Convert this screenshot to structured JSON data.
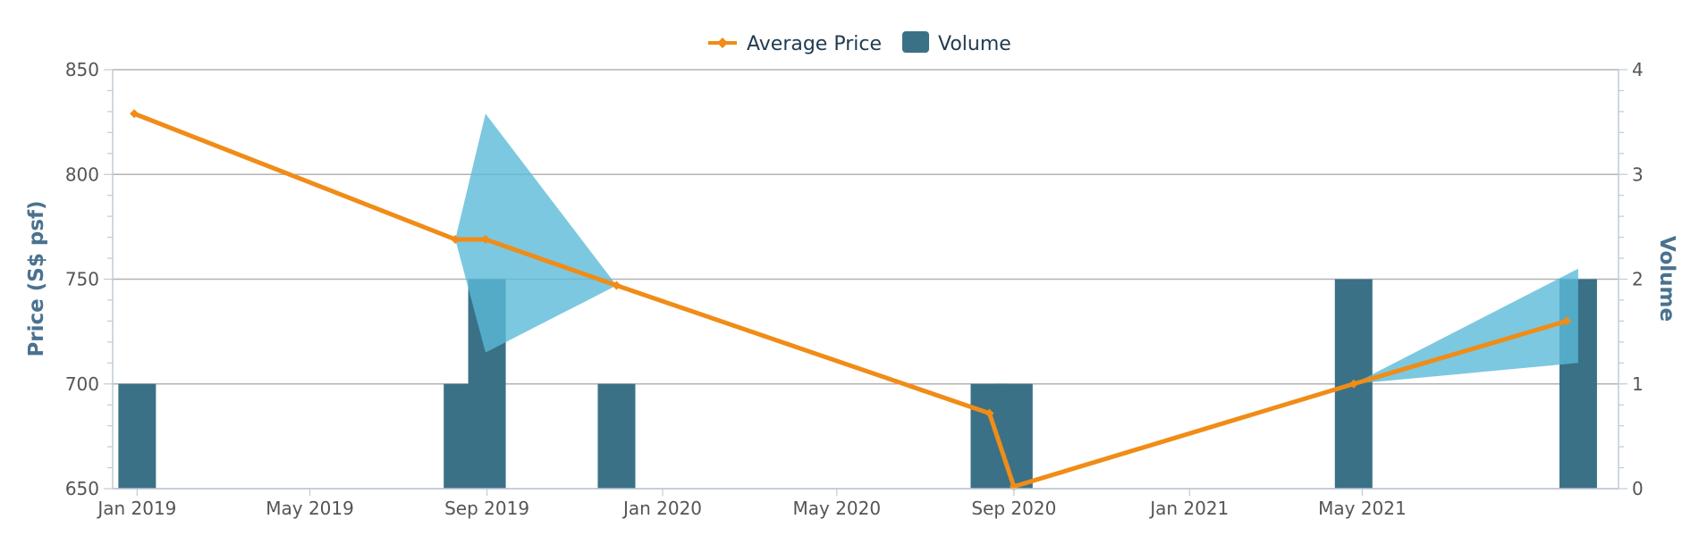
{
  "chart_data": {
    "type": "line",
    "title": "",
    "legend": {
      "placement": "top-center",
      "items": [
        {
          "name": "Average Price",
          "kind": "line",
          "color": "#f08c17"
        },
        {
          "name": "Volume",
          "kind": "bar",
          "color": "#3a7186"
        }
      ]
    },
    "x_axis": {
      "type": "date",
      "range": [
        "2018-12-15",
        "2021-10-26"
      ],
      "ticks": [
        {
          "date": "2019-01-01",
          "label": "Jan 2019"
        },
        {
          "date": "2019-05-01",
          "label": "May 2019"
        },
        {
          "date": "2019-09-01",
          "label": "Sep 2019"
        },
        {
          "date": "2020-01-01",
          "label": "Jan 2020"
        },
        {
          "date": "2020-05-01",
          "label": "May 2020"
        },
        {
          "date": "2020-09-01",
          "label": "Sep 2020"
        },
        {
          "date": "2021-01-01",
          "label": "Jan 2021"
        },
        {
          "date": "2021-05-01",
          "label": "May 2021"
        }
      ]
    },
    "y_axis_left": {
      "label": "Price (S$ psf)",
      "min": 650,
      "max": 850,
      "ticks": [
        650,
        700,
        750,
        800,
        850
      ]
    },
    "y_axis_right": {
      "label": "Volume",
      "min": 0,
      "max": 4,
      "ticks": [
        0,
        1,
        2,
        3,
        4
      ]
    },
    "grid": true,
    "series": [
      {
        "name": "Average Price",
        "type": "line",
        "axis": "left",
        "color": "#f08c17",
        "points": [
          {
            "date": "2018-12-30",
            "value": 829
          },
          {
            "date": "2019-08-10",
            "value": 769
          },
          {
            "date": "2019-08-31",
            "value": 769
          },
          {
            "date": "2019-11-30",
            "value": 747
          },
          {
            "date": "2020-08-15",
            "value": 686
          },
          {
            "date": "2020-09-01",
            "value": 651
          },
          {
            "date": "2021-04-25",
            "value": 700
          },
          {
            "date": "2021-09-20",
            "value": 730
          }
        ]
      },
      {
        "name": "Price Range",
        "type": "area",
        "axis": "left",
        "color": "#5bbad8",
        "ranges": [
          {
            "date": "2019-08-10",
            "low": 769,
            "high": 769
          },
          {
            "date": "2019-08-31",
            "low": 715,
            "high": 829
          },
          {
            "date": "2019-11-30",
            "low": 747,
            "high": 747
          },
          {
            "date": "2021-04-25",
            "low": 700,
            "high": 700
          },
          {
            "date": "2021-09-28",
            "low": 710,
            "high": 755
          }
        ]
      },
      {
        "name": "Volume",
        "type": "bar",
        "axis": "right",
        "color": "#3a7186",
        "bars": [
          {
            "date": "2019-01-01",
            "value": 1
          },
          {
            "date": "2019-08-15",
            "value": 1
          },
          {
            "date": "2019-09-01",
            "value": 2
          },
          {
            "date": "2019-11-30",
            "value": 1
          },
          {
            "date": "2020-08-15",
            "value": 1
          },
          {
            "date": "2020-09-01",
            "value": 1
          },
          {
            "date": "2021-04-25",
            "value": 2
          },
          {
            "date": "2021-09-28",
            "value": 2
          }
        ]
      }
    ]
  }
}
